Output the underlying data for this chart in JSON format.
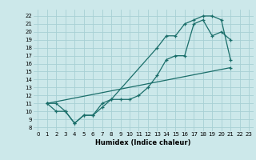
{
  "xlabel": "Humidex (Indice chaleur)",
  "ylabel": "",
  "background_color": "#cce8ea",
  "grid_color": "#a8d0d4",
  "line_color": "#1a6e6a",
  "xlim": [
    -0.5,
    23.5
  ],
  "ylim": [
    7.5,
    22.8
  ],
  "xticks": [
    0,
    1,
    2,
    3,
    4,
    5,
    6,
    7,
    8,
    9,
    10,
    11,
    12,
    13,
    14,
    15,
    16,
    17,
    18,
    19,
    20,
    21,
    22,
    23
  ],
  "yticks": [
    8,
    9,
    10,
    11,
    12,
    13,
    14,
    15,
    16,
    17,
    18,
    19,
    20,
    21,
    22
  ],
  "line1_x": [
    1,
    2,
    3,
    4,
    5,
    6,
    7,
    8,
    13,
    14,
    15,
    16,
    17,
    18,
    19,
    20,
    21
  ],
  "line1_y": [
    11,
    11,
    10,
    8.5,
    9.5,
    9.5,
    11,
    11.5,
    18,
    19.5,
    19.5,
    21,
    21.5,
    22,
    22,
    21.5,
    16.5
  ],
  "line2_x": [
    1,
    2,
    3,
    4,
    5,
    6,
    7,
    8,
    9,
    10,
    11,
    12,
    13,
    14,
    15,
    16,
    17,
    18,
    19,
    20,
    21
  ],
  "line2_y": [
    11,
    10,
    10,
    8.5,
    9.5,
    9.5,
    10.5,
    11.5,
    11.5,
    11.5,
    12,
    13,
    14.5,
    16.5,
    17,
    17,
    21,
    21.5,
    19.5,
    20,
    19
  ],
  "line3_x": [
    1,
    21
  ],
  "line3_y": [
    11,
    15.5
  ],
  "figsize": [
    3.2,
    2.0
  ],
  "dpi": 100
}
